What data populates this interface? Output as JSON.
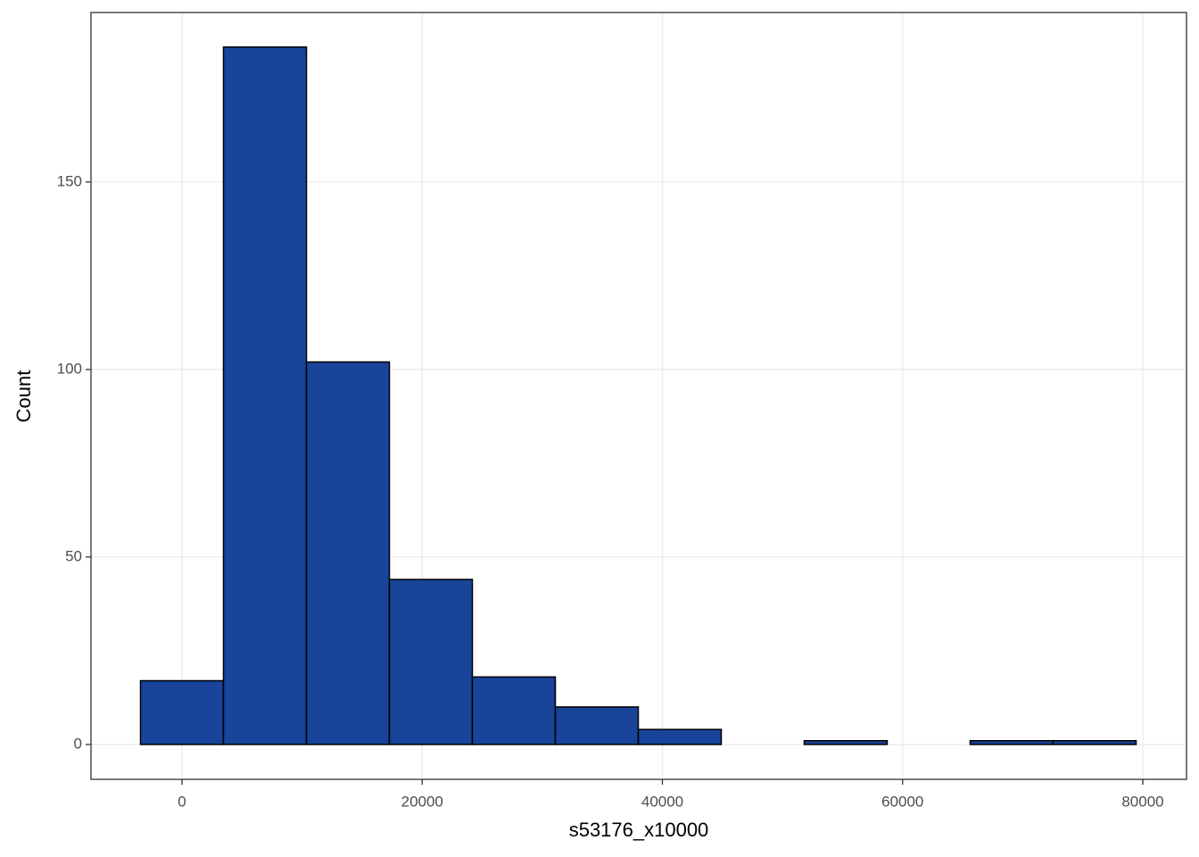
{
  "chart_data": {
    "type": "histogram",
    "x_label": "s53176_x10000",
    "y_label": "Count",
    "bins": [
      -3454,
      3454,
      10362,
      17270,
      24178,
      31086,
      37994,
      44902,
      51810,
      58718,
      65626,
      72534,
      79442
    ],
    "values": [
      17,
      186,
      102,
      44,
      18,
      10,
      4,
      0,
      1,
      0,
      1,
      1
    ],
    "color": "#18449a",
    "xlim": [
      -7577,
      83640
    ],
    "ylim": [
      -9.3,
      195.2
    ],
    "xticks": [
      0,
      20000,
      40000,
      60000,
      80000
    ],
    "yticks": [
      0,
      50,
      100,
      150
    ],
    "grid": true
  }
}
